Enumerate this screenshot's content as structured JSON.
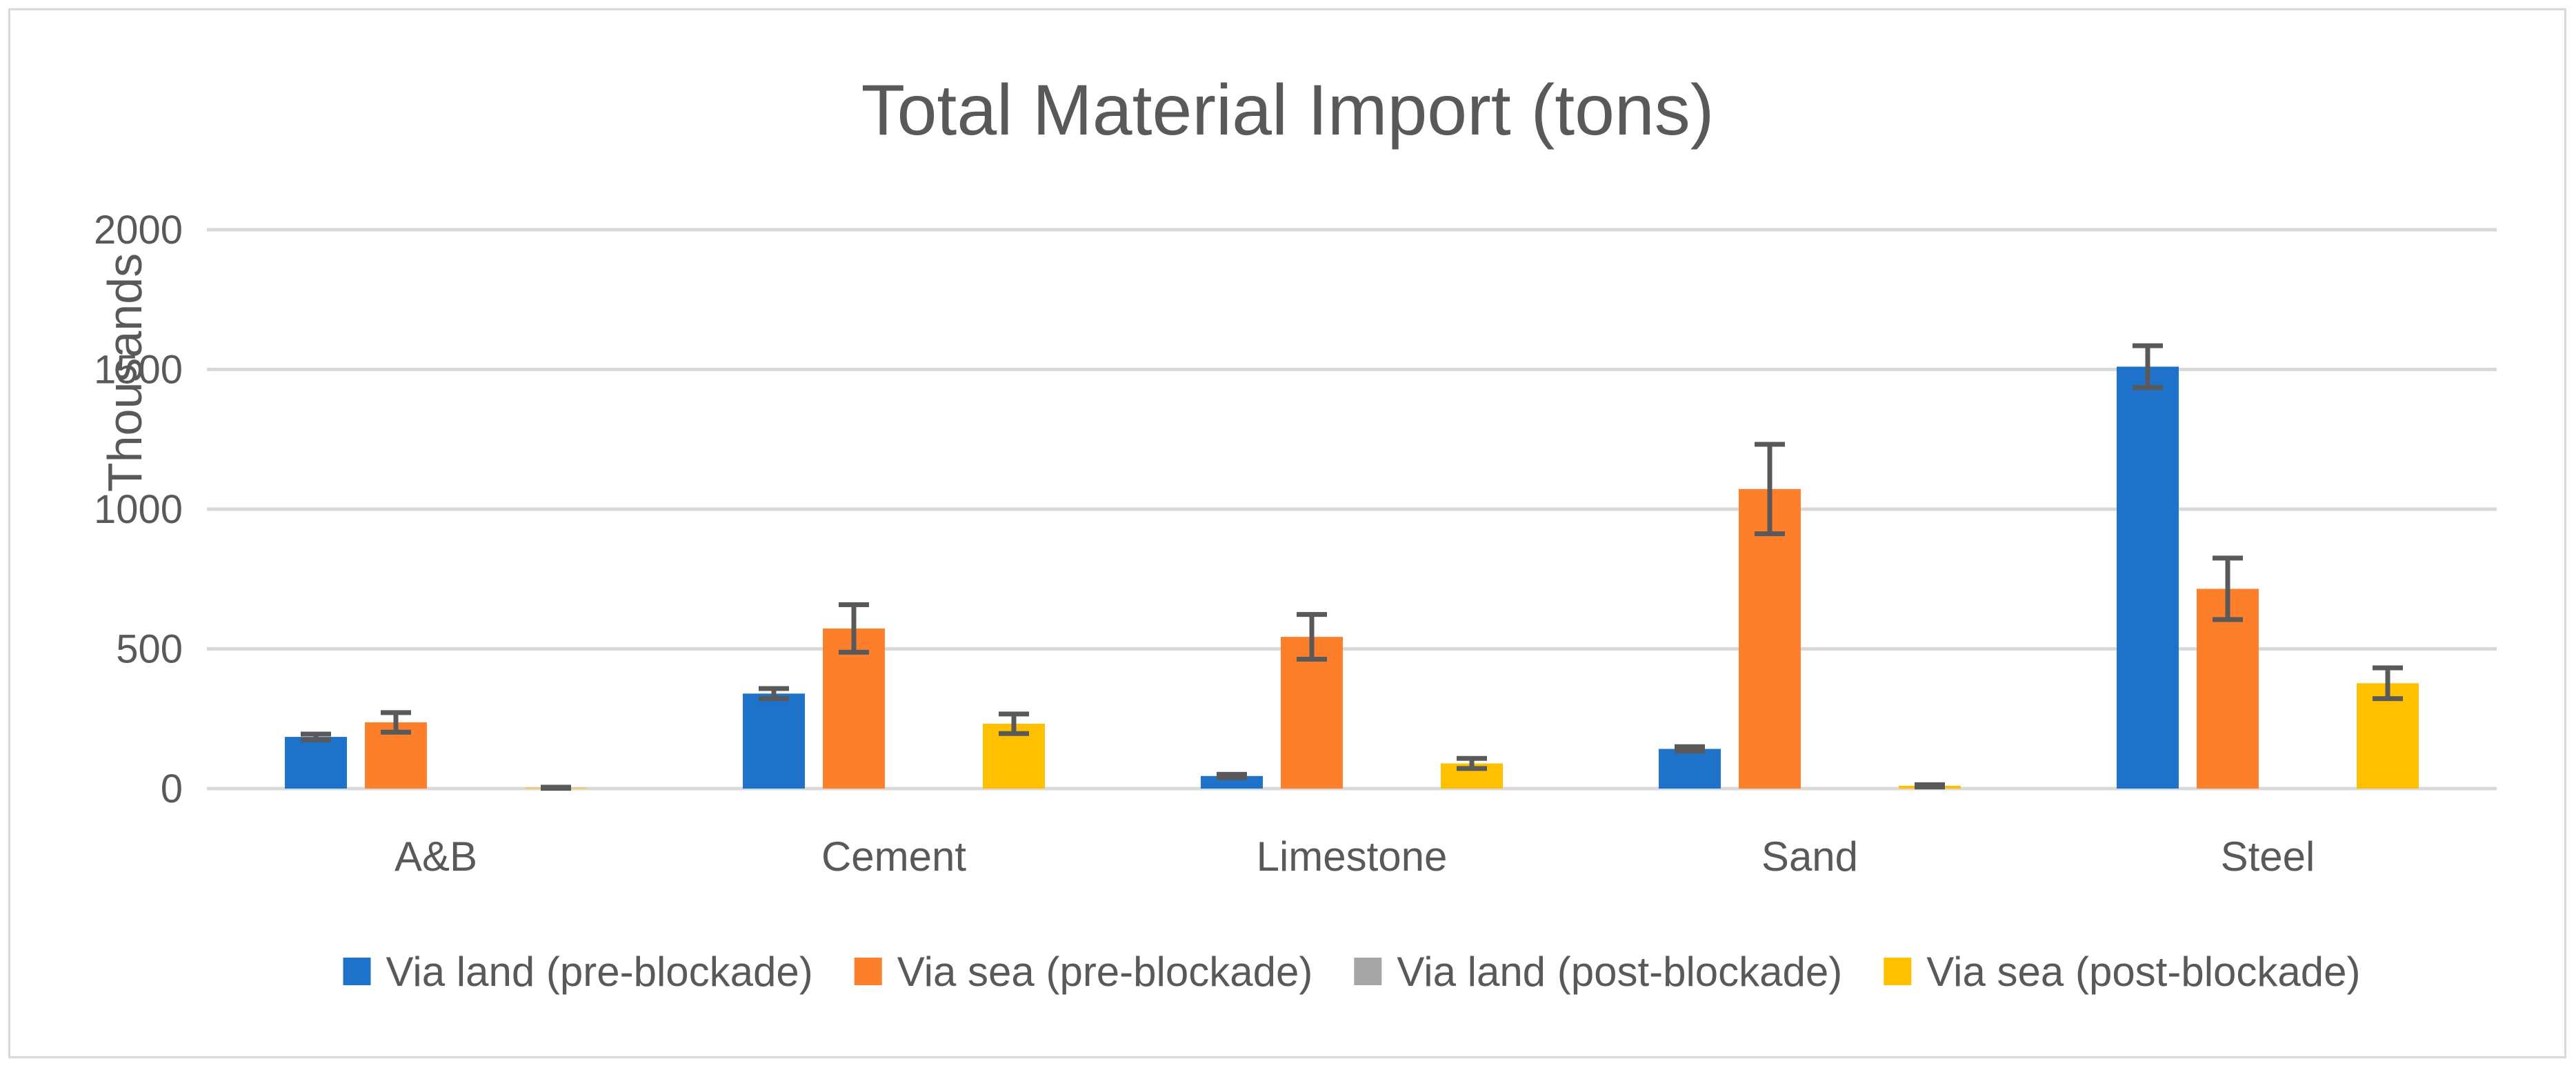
{
  "chart_data": {
    "type": "bar",
    "title": "Total Material Import (tons)",
    "xlabel": "",
    "ylabel": "Thousands",
    "ylim": [
      0,
      2000
    ],
    "yticks": [
      0,
      500,
      1000,
      1500,
      2000
    ],
    "grid": true,
    "legend_position": "bottom",
    "categories": [
      "A&B",
      "Cement",
      "Limestone",
      "Sand",
      "Steel"
    ],
    "series": [
      {
        "name": "Via land (pre-blockade)",
        "color": "#1f72c9",
        "values": [
          185,
          340,
          45,
          142,
          1510
        ],
        "errors": [
          10,
          18,
          6,
          8,
          75
        ]
      },
      {
        "name": "Via sea (pre-blockade)",
        "color": "#fd7f2c",
        "values": [
          237,
          573,
          543,
          1072,
          715
        ],
        "errors": [
          35,
          85,
          80,
          160,
          110
        ]
      },
      {
        "name": "Via land (post-blockade)",
        "color": "#a5a5a5",
        "values": [
          0,
          0,
          0,
          0,
          0
        ],
        "errors": [
          0,
          0,
          0,
          0,
          0
        ]
      },
      {
        "name": "Via sea (post-blockade)",
        "color": "#ffc000",
        "values": [
          3,
          232,
          90,
          10,
          377
        ],
        "errors": [
          2,
          35,
          18,
          4,
          55
        ]
      }
    ]
  }
}
